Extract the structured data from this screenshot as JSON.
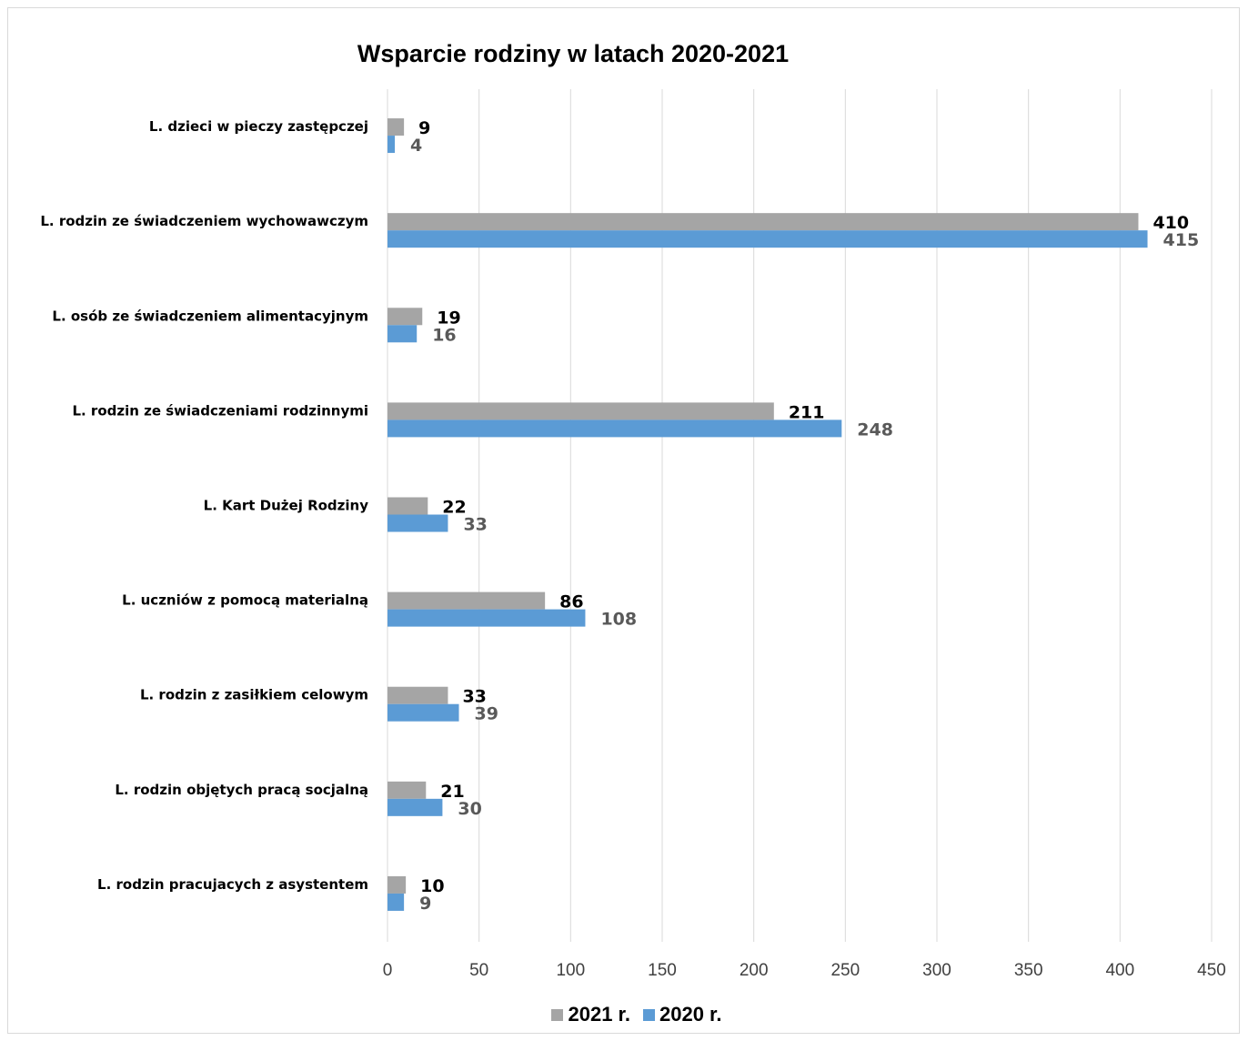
{
  "chart_data": {
    "type": "bar",
    "orientation": "horizontal",
    "title": "Wsparcie rodziny w latach 2020-2021",
    "categories": [
      "L. dzieci w pieczy zastępczej",
      "L. rodzin ze świadczeniem wychowawczym",
      "L. osób ze świadczeniem alimentacyjnym",
      "L. rodzin ze świadczeniami rodzinnymi",
      "L. Kart Dużej Rodziny",
      "L. uczniów z pomocą materialną",
      "L. rodzin z zasiłkiem celowym",
      "L. rodzin objętych pracą socjalną",
      "L. rodzin pracujacych z asystentem"
    ],
    "series": [
      {
        "name": "2021 r.",
        "color": "#a5a5a5",
        "values": [
          9,
          410,
          19,
          211,
          22,
          86,
          33,
          21,
          10
        ]
      },
      {
        "name": "2020 r.",
        "color": "#5b9bd5",
        "values": [
          4,
          415,
          16,
          248,
          33,
          108,
          39,
          30,
          9
        ]
      }
    ],
    "xlim": [
      0,
      450
    ],
    "xticks": [
      0,
      50,
      100,
      150,
      200,
      250,
      300,
      350,
      400,
      450
    ],
    "grid": true,
    "legend_position": "bottom"
  }
}
